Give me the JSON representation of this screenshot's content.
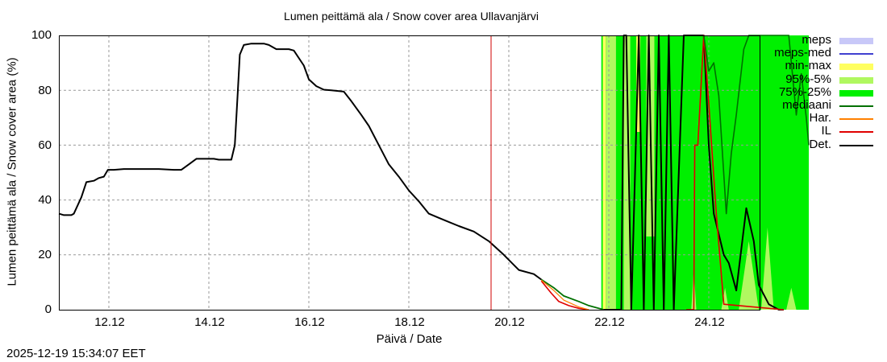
{
  "chart_data": {
    "type": "line",
    "title": "Lumen peittämä ala / Snow cover area Ullavanjärvi",
    "xlabel": "Päivä / Date",
    "ylabel": "Lumen peittämä ala / Snow cover area (%)",
    "ylim": [
      0,
      100
    ],
    "xlim": [
      "11.12 00:00",
      "25.12 00:00"
    ],
    "yticks": [
      "0",
      "20",
      "40",
      "60",
      "80",
      "100"
    ],
    "xticks": [
      "12.12",
      "14.12",
      "16.12",
      "18.12",
      "20.12",
      "22.12",
      "24.12"
    ],
    "grid": true,
    "legend_position": "right-outside",
    "forecast_start_marker": "19.12 15:34",
    "legend": [
      {
        "label": "meps",
        "color": "#c8c8f8",
        "style": "band"
      },
      {
        "label": "meps-med",
        "color": "#4040d0",
        "style": "line"
      },
      {
        "label": "min-max",
        "color": "#ffff60",
        "style": "band"
      },
      {
        "label": "95%-5%",
        "color": "#b0f860",
        "style": "band"
      },
      {
        "label": "75%-25%",
        "color": "#00f000",
        "style": "band"
      },
      {
        "label": "mediaani",
        "color": "#007000",
        "style": "line"
      },
      {
        "label": "Har.",
        "color": "#ff8000",
        "style": "line"
      },
      {
        "label": "IL",
        "color": "#e00000",
        "style": "line"
      },
      {
        "label": "Det.",
        "color": "#000000",
        "style": "line"
      }
    ],
    "series": [
      {
        "name": "Det. (observed/history)",
        "x_days": [
          0,
          0.1,
          0.25,
          0.3,
          0.45,
          0.55,
          0.7,
          0.8,
          0.9,
          0.98,
          1.1,
          1.3,
          1.6,
          2.0,
          2.3,
          2.45,
          2.6,
          2.75,
          2.9,
          3.1,
          3.2,
          3.45,
          3.52,
          3.58,
          3.62,
          3.7,
          3.85,
          4.1,
          4.2,
          4.35,
          4.6,
          4.7,
          4.9,
          5.0,
          5.15,
          5.3,
          5.45,
          5.7,
          5.85,
          6.05,
          6.2,
          6.4,
          6.6,
          6.8,
          7.0,
          7.2,
          7.4,
          7.6,
          7.8,
          8.0,
          8.3,
          8.6,
          8.9,
          9.2,
          9.5,
          9.65
        ],
        "values": [
          35,
          34.5,
          34.5,
          35,
          41,
          46.5,
          47,
          48,
          48.5,
          51,
          51,
          51.3,
          51.3,
          51.3,
          51,
          51,
          53,
          55,
          55,
          55,
          54.7,
          54.7,
          60,
          80,
          93,
          96.5,
          97,
          97,
          96.5,
          95,
          95,
          94.5,
          89,
          84,
          81.5,
          80.2,
          80,
          79.5,
          76,
          71,
          67,
          60,
          53,
          48.5,
          43.5,
          39.5,
          35,
          33.5,
          32,
          30.5,
          28.5,
          25,
          20,
          14.5,
          13,
          11
        ]
      },
      {
        "name": "mediaani (forecast)",
        "x_days": [
          9.65,
          9.9,
          10.1,
          10.4,
          10.6,
          10.9
        ],
        "values": [
          11,
          8,
          5,
          3,
          1.5,
          0
        ]
      },
      {
        "name": "IL (forecast)",
        "x_days": [
          9.65,
          9.85,
          10.0,
          10.2,
          10.4,
          10.6
        ],
        "values": [
          10.5,
          6,
          3,
          1.5,
          0.5,
          0
        ]
      },
      {
        "name": "Det. (forecast, oscillating 0-100 after 21.12)",
        "x_days": [
          10.9,
          11.25,
          11.3,
          11.35,
          11.45,
          11.6,
          11.7,
          11.8,
          11.9,
          12.0,
          12.1,
          12.2,
          12.3,
          12.5,
          12.6,
          12.75,
          12.9,
          13.0,
          13.1,
          13.3,
          13.4,
          13.55,
          13.75,
          13.9,
          14.0,
          14.2,
          14.4,
          14.5
        ],
        "values": [
          0,
          0,
          100,
          100,
          0,
          100,
          0,
          100,
          0,
          100,
          0,
          100,
          0,
          100,
          100,
          100,
          100,
          60,
          35,
          20,
          17,
          7,
          37,
          25,
          9,
          2,
          0,
          0
        ]
      },
      {
        "name": "IL (forecast late)",
        "x_days": [
          12.55,
          12.7,
          12.72,
          12.78,
          12.9,
          13.0,
          13.15,
          13.3,
          14.5
        ],
        "values": [
          0,
          0,
          60,
          60,
          100,
          75,
          35,
          2,
          0
        ]
      },
      {
        "name": "mediaani (forecast late)",
        "x_days": [
          12.9,
          13.0,
          13.1,
          13.2,
          13.35,
          13.45,
          13.55,
          13.7,
          13.8,
          14.0,
          14.2,
          14.4,
          14.6,
          14.75,
          14.85,
          14.95,
          15.0
        ],
        "values": [
          100,
          87,
          90,
          78,
          35,
          57,
          71,
          95,
          100,
          100,
          100,
          100,
          100,
          71,
          86,
          70,
          60
        ]
      }
    ],
    "bands": [
      {
        "name": "75%-25%",
        "x_range_days": [
          10.85,
          15.0
        ],
        "low": 0,
        "high": 100,
        "note": "fills almost entire area after ~21.12"
      },
      {
        "name": "95%-5%",
        "x_range_days": [
          10.85,
          12.0
        ],
        "low": 0,
        "high": 100
      },
      {
        "name": "min-max",
        "x_range_days": [
          10.85,
          11.1
        ],
        "low": 0,
        "high": 100
      }
    ]
  },
  "footer": {
    "timestamp": "2025-12-19 15:34:07 EET"
  }
}
